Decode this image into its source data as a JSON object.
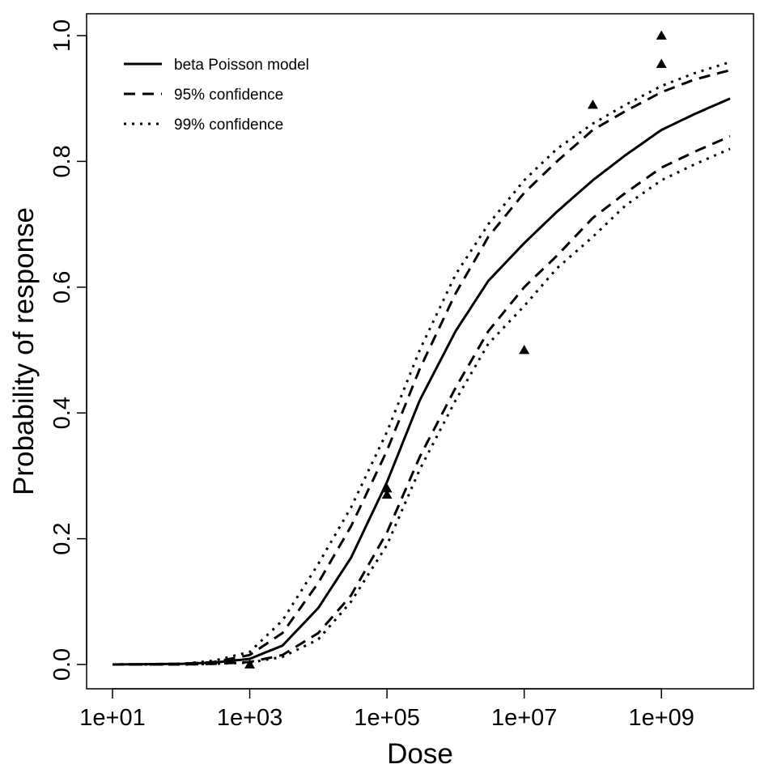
{
  "chart_data": {
    "type": "line",
    "xlabel": "Dose",
    "ylabel": "Probability of response",
    "x_scale": "log10",
    "xlim": [
      10,
      10000000000
    ],
    "ylim": [
      0.0,
      1.0
    ],
    "x_ticks": [
      {
        "value": 10,
        "label": "1e+01"
      },
      {
        "value": 1000,
        "label": "1e+03"
      },
      {
        "value": 100000,
        "label": "1e+05"
      },
      {
        "value": 10000000,
        "label": "1e+07"
      },
      {
        "value": 1000000000,
        "label": "1e+09"
      }
    ],
    "y_ticks": [
      {
        "value": 0.0,
        "label": "0.0"
      },
      {
        "value": 0.2,
        "label": "0.2"
      },
      {
        "value": 0.4,
        "label": "0.4"
      },
      {
        "value": 0.6,
        "label": "0.6"
      },
      {
        "value": 0.8,
        "label": "0.8"
      },
      {
        "value": 1.0,
        "label": "1.0"
      }
    ],
    "grid": false,
    "legend_position": "top-left",
    "series": [
      {
        "name": "beta Poisson model",
        "style": "solid",
        "x": [
          10,
          100,
          300,
          1000,
          3000,
          10000,
          30000,
          100000,
          300000,
          1000000,
          3000000,
          10000000,
          30000000,
          100000000,
          300000000,
          1000000000,
          3000000000,
          10000000000
        ],
        "y": [
          0.0,
          0.001,
          0.003,
          0.009,
          0.03,
          0.09,
          0.17,
          0.29,
          0.42,
          0.53,
          0.61,
          0.67,
          0.72,
          0.77,
          0.81,
          0.85,
          0.875,
          0.9
        ]
      },
      {
        "name": "95% confidence",
        "style": "dashed",
        "x": [
          10,
          100,
          300,
          1000,
          3000,
          10000,
          30000,
          100000,
          300000,
          1000000,
          3000000,
          10000000,
          30000000,
          100000000,
          300000000,
          1000000000,
          3000000000,
          10000000000
        ],
        "y": [
          0.0,
          0.001,
          0.004,
          0.015,
          0.05,
          0.13,
          0.22,
          0.34,
          0.47,
          0.59,
          0.68,
          0.75,
          0.8,
          0.85,
          0.88,
          0.91,
          0.93,
          0.945
        ]
      },
      {
        "name": "",
        "style": "dashed",
        "x": [
          10,
          100,
          300,
          1000,
          3000,
          10000,
          30000,
          100000,
          300000,
          1000000,
          3000000,
          10000000,
          30000000,
          100000000,
          300000000,
          1000000000,
          3000000000,
          10000000000
        ],
        "y": [
          0.0,
          0.0,
          0.001,
          0.004,
          0.015,
          0.05,
          0.11,
          0.21,
          0.33,
          0.44,
          0.53,
          0.6,
          0.65,
          0.71,
          0.75,
          0.79,
          0.815,
          0.84
        ]
      },
      {
        "name": "99% confidence",
        "style": "dotted",
        "x": [
          10,
          100,
          300,
          1000,
          3000,
          10000,
          30000,
          100000,
          300000,
          1000000,
          3000000,
          10000000,
          30000000,
          100000000,
          300000000,
          1000000000,
          3000000000,
          10000000000
        ],
        "y": [
          0.0,
          0.001,
          0.006,
          0.02,
          0.07,
          0.16,
          0.25,
          0.37,
          0.5,
          0.62,
          0.7,
          0.77,
          0.82,
          0.86,
          0.89,
          0.92,
          0.94,
          0.958
        ]
      },
      {
        "name": "",
        "style": "dotted",
        "x": [
          10,
          100,
          300,
          1000,
          3000,
          10000,
          30000,
          100000,
          300000,
          1000000,
          3000000,
          10000000,
          30000000,
          100000000,
          300000000,
          1000000000,
          3000000000,
          10000000000
        ],
        "y": [
          0.0,
          0.0,
          0.001,
          0.003,
          0.012,
          0.04,
          0.1,
          0.19,
          0.31,
          0.42,
          0.51,
          0.57,
          0.63,
          0.68,
          0.73,
          0.77,
          0.795,
          0.82
        ]
      }
    ],
    "observed_points": {
      "marker": "triangle",
      "x": [
        1000,
        100000,
        100000,
        10000000,
        100000000,
        1000000000,
        1000000000
      ],
      "y": [
        0.0,
        0.27,
        0.28,
        0.5,
        0.89,
        0.955,
        1.0
      ]
    }
  }
}
